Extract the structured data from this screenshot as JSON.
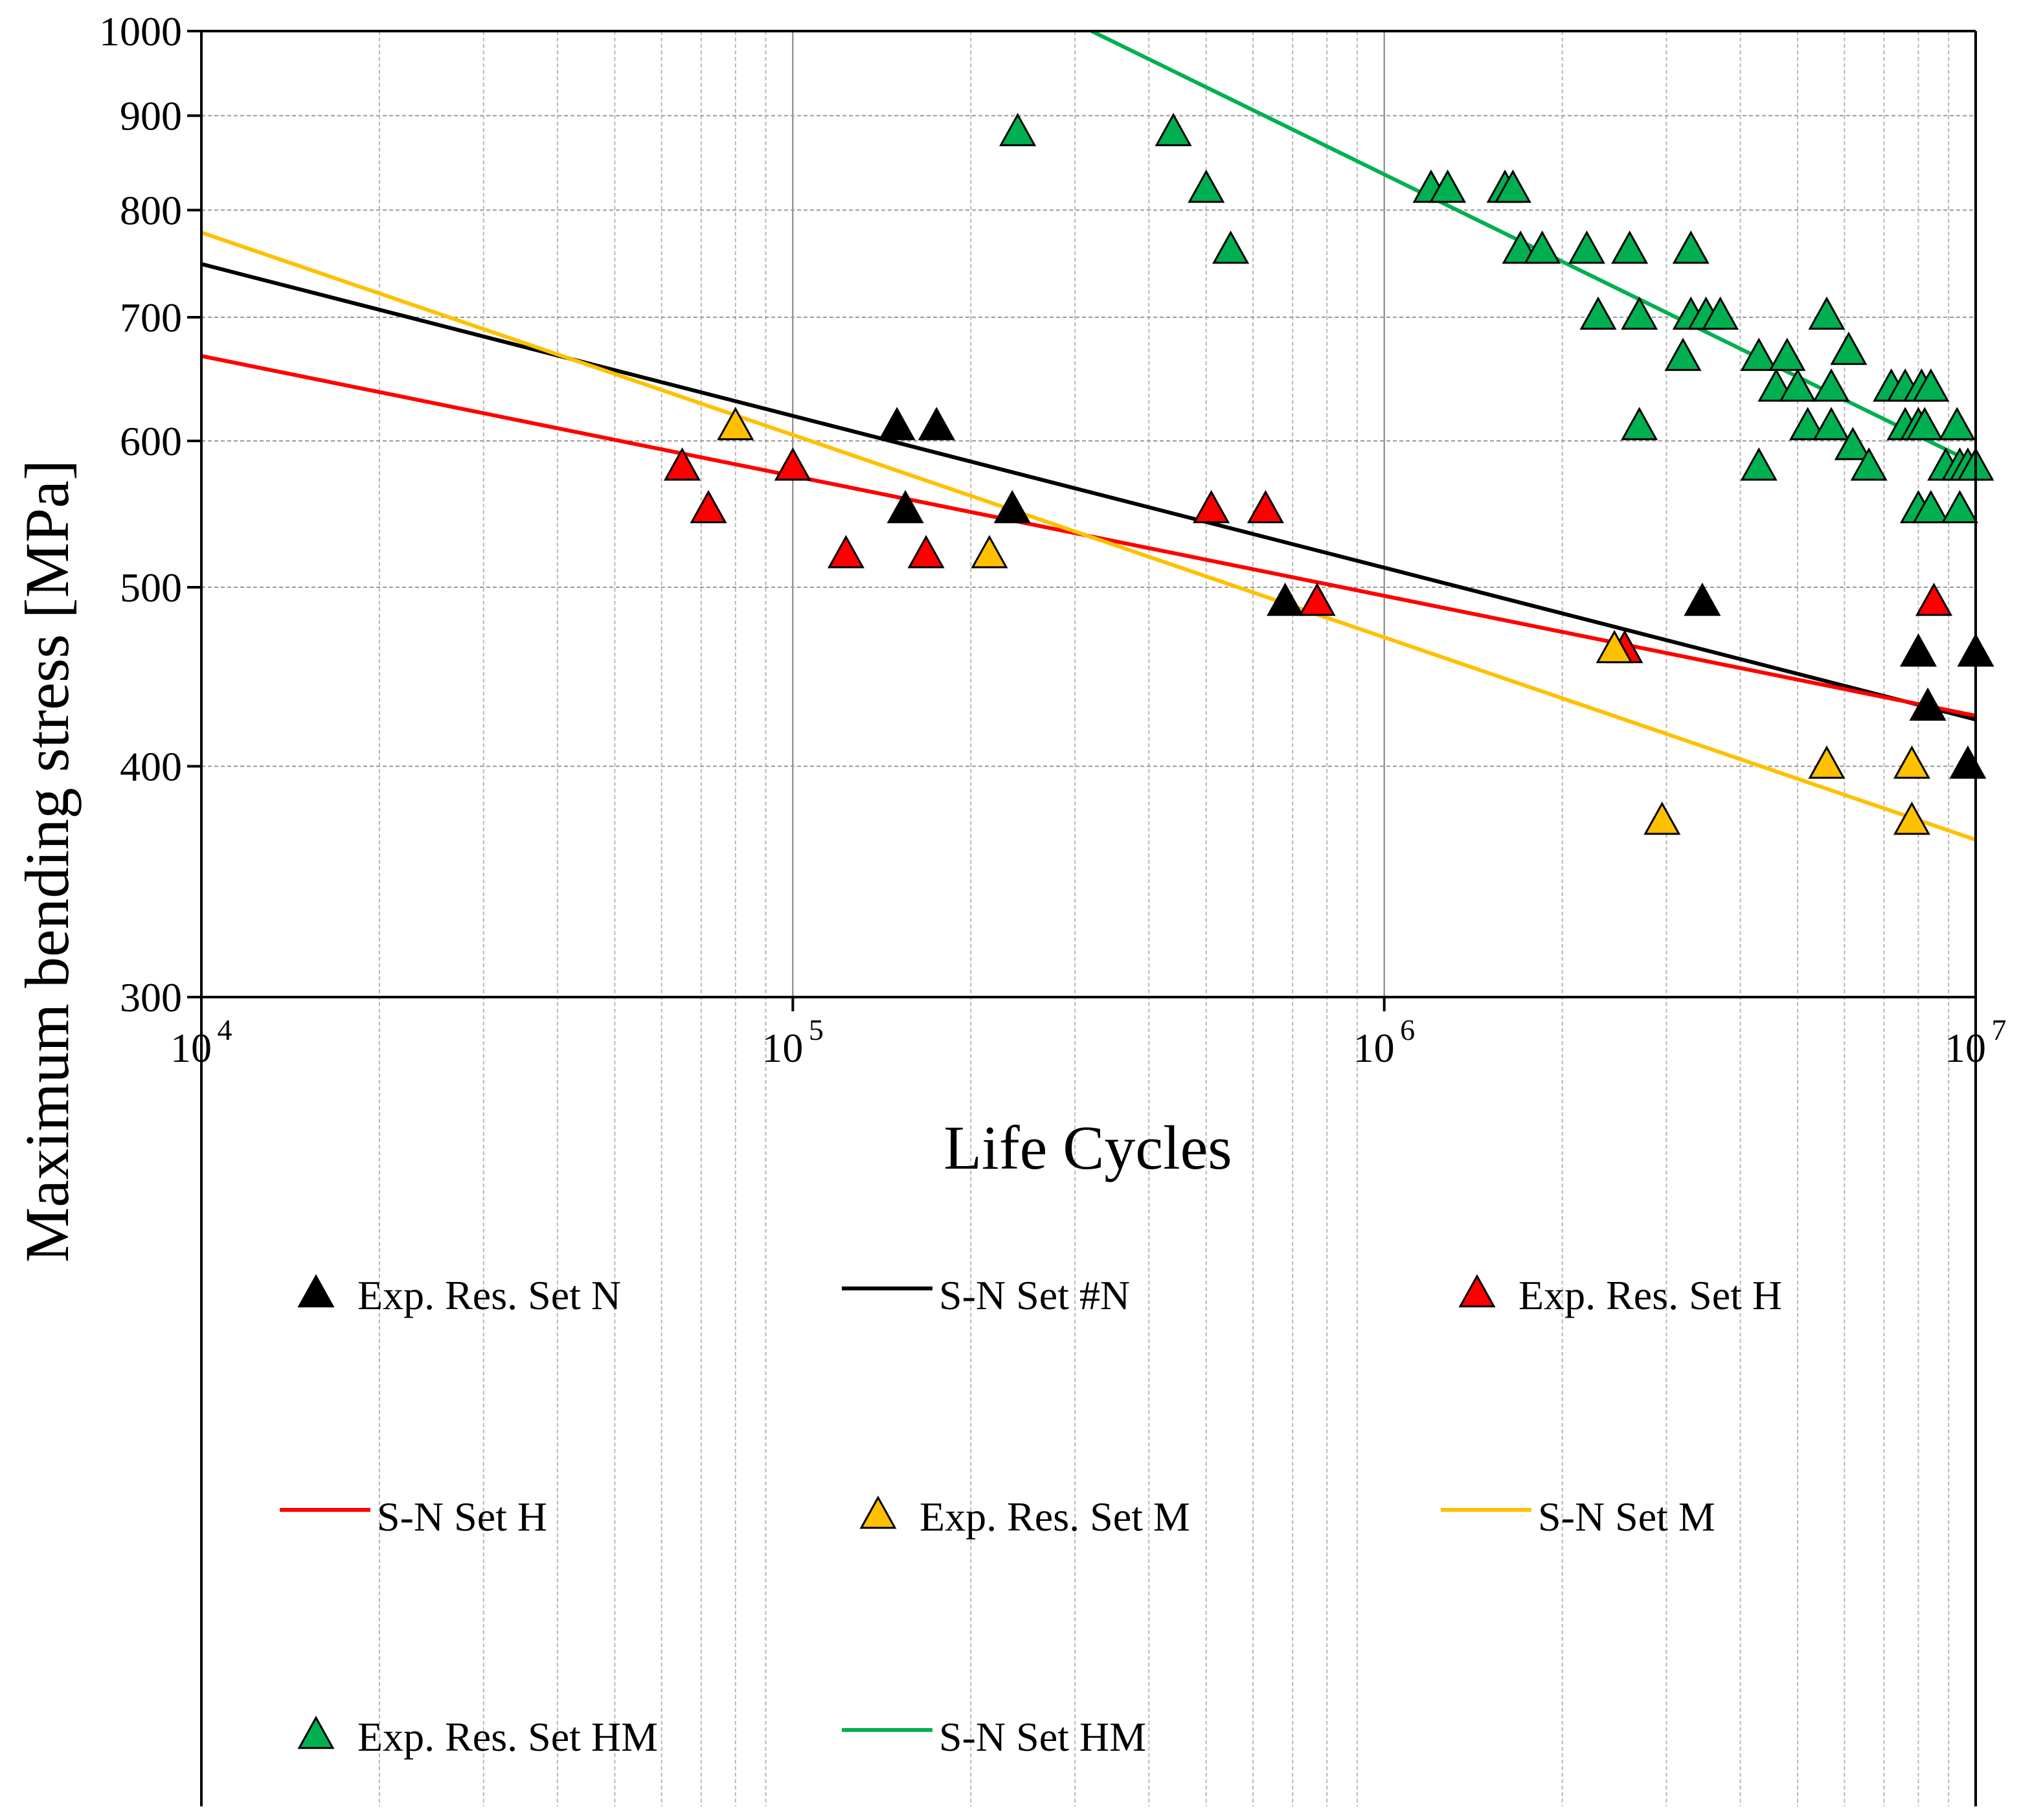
{
  "chart_data": {
    "type": "scatter",
    "xscale": "log",
    "yscale": "log",
    "xlim": [
      10000,
      10000000
    ],
    "ylim": [
      300,
      1000
    ],
    "grid": true,
    "xlabel": "Life Cycles",
    "ylabel": "Maximum bending stress [MPa]",
    "xticks": [
      {
        "value": 10000,
        "base": "10",
        "exp": "4"
      },
      {
        "value": 100000,
        "base": "10",
        "exp": "5"
      },
      {
        "value": 1000000,
        "base": "10",
        "exp": "6"
      },
      {
        "value": 10000000,
        "base": "10",
        "exp": "7"
      }
    ],
    "yticks": [
      300,
      400,
      500,
      600,
      700,
      800,
      900,
      1000
    ],
    "legend_placement": "below plot",
    "series": [
      {
        "name": "Exp. Res. Set N",
        "kind": "points",
        "color": "#000000",
        "points": [
          [
            150000,
            610
          ],
          [
            175000,
            610
          ],
          [
            155000,
            550
          ],
          [
            235000,
            550
          ],
          [
            680000,
            490
          ],
          [
            3450000,
            490
          ],
          [
            8000000,
            460
          ],
          [
            10000000,
            460
          ],
          [
            8300000,
            430
          ],
          [
            9700000,
            400
          ]
        ]
      },
      {
        "name": "S-N Set #N",
        "kind": "line",
        "color": "#000000",
        "points": [
          [
            10000,
            748
          ],
          [
            10000000,
            424
          ]
        ]
      },
      {
        "name": "Exp. Res. Set H",
        "kind": "points",
        "color": "#ff0000",
        "points": [
          [
            65000,
            580
          ],
          [
            72000,
            550
          ],
          [
            100000,
            580
          ],
          [
            123000,
            520
          ],
          [
            168000,
            520
          ],
          [
            510000,
            550
          ],
          [
            630000,
            550
          ],
          [
            770000,
            490
          ],
          [
            2550000,
            462
          ],
          [
            8500000,
            490
          ]
        ]
      },
      {
        "name": "S-N Set H",
        "kind": "line",
        "color": "#ff0000",
        "points": [
          [
            10000,
            667
          ],
          [
            10000000,
            426
          ]
        ]
      },
      {
        "name": "Exp. Res. Set M",
        "kind": "points",
        "color": "#ffc000",
        "points": [
          [
            80000,
            610
          ],
          [
            215000,
            520
          ],
          [
            2450000,
            462
          ],
          [
            2950000,
            373
          ],
          [
            5600000,
            400
          ],
          [
            7800000,
            400
          ],
          [
            7800000,
            373
          ]
        ]
      },
      {
        "name": "S-N Set M",
        "kind": "line",
        "color": "#ffc000",
        "points": [
          [
            10000,
            778
          ],
          [
            10000000,
            365
          ]
        ]
      },
      {
        "name": "Exp. Res. Set HM",
        "kind": "points",
        "color": "#00b050",
        "points": [
          [
            240000,
            880
          ],
          [
            440000,
            880
          ],
          [
            500000,
            820
          ],
          [
            550000,
            760
          ],
          [
            1200000,
            820
          ],
          [
            1280000,
            820
          ],
          [
            1600000,
            820
          ],
          [
            1650000,
            820
          ],
          [
            1700000,
            760
          ],
          [
            1850000,
            760
          ],
          [
            2200000,
            760
          ],
          [
            2600000,
            760
          ],
          [
            3300000,
            760
          ],
          [
            2300000,
            700
          ],
          [
            2700000,
            700
          ],
          [
            3300000,
            700
          ],
          [
            3500000,
            700
          ],
          [
            3700000,
            700
          ],
          [
            5600000,
            700
          ],
          [
            3200000,
            665
          ],
          [
            4300000,
            665
          ],
          [
            4800000,
            665
          ],
          [
            6100000,
            670
          ],
          [
            4600000,
            640
          ],
          [
            5000000,
            640
          ],
          [
            5700000,
            640
          ],
          [
            7200000,
            640
          ],
          [
            7600000,
            640
          ],
          [
            8100000,
            640
          ],
          [
            8400000,
            640
          ],
          [
            2700000,
            610
          ],
          [
            5200000,
            610
          ],
          [
            5700000,
            610
          ],
          [
            7600000,
            610
          ],
          [
            8000000,
            610
          ],
          [
            8200000,
            610
          ],
          [
            9300000,
            610
          ],
          [
            6200000,
            595
          ],
          [
            6600000,
            580
          ],
          [
            4300000,
            580
          ],
          [
            8900000,
            580
          ],
          [
            9400000,
            580
          ],
          [
            9700000,
            580
          ],
          [
            10000000,
            580
          ],
          [
            8000000,
            550
          ],
          [
            8400000,
            550
          ],
          [
            9400000,
            550
          ]
        ]
      },
      {
        "name": "S-N Set HM",
        "kind": "line",
        "color": "#00b050",
        "points": [
          [
            320000,
            1000
          ],
          [
            10000000,
            583
          ]
        ]
      }
    ]
  }
}
